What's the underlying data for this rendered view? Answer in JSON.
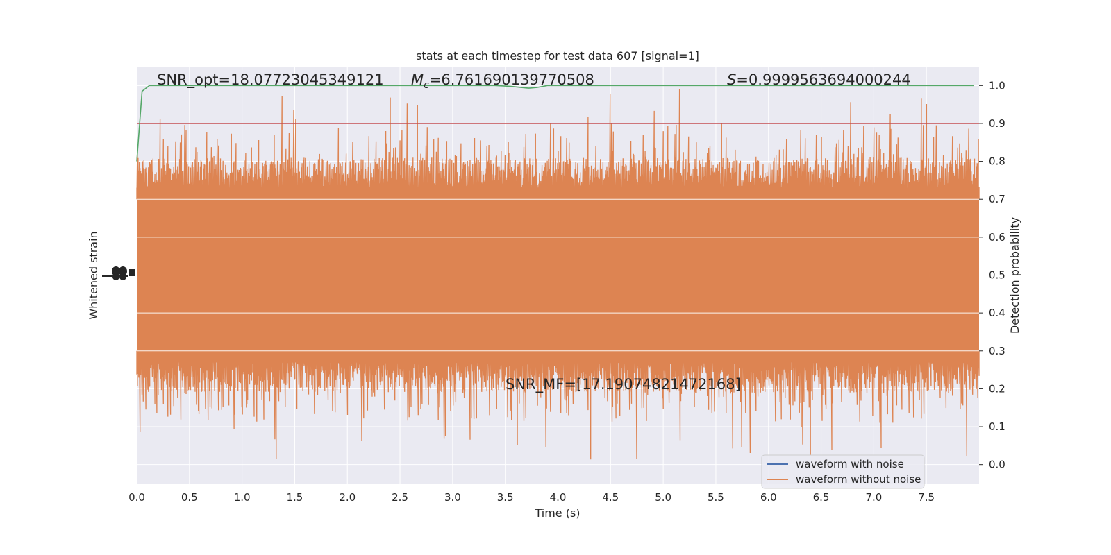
{
  "chart_data": {
    "type": "line",
    "title": "stats at each timestep for test data 607 [signal=1]",
    "xlabel": "Time (s)",
    "ylabel_left": "Whitened strain",
    "ylabel_right": "Detection probability",
    "xlim": [
      0.0,
      8.0
    ],
    "ylim_right": [
      -0.05,
      1.05
    ],
    "x_ticks": [
      "0.0",
      "0.5",
      "1.0",
      "1.5",
      "2.0",
      "2.5",
      "3.0",
      "3.5",
      "4.0",
      "4.5",
      "5.0",
      "5.5",
      "6.0",
      "6.5",
      "7.0",
      "7.5"
    ],
    "x_tick_values": [
      0.0,
      0.5,
      1.0,
      1.5,
      2.0,
      2.5,
      3.0,
      3.5,
      4.0,
      4.5,
      5.0,
      5.5,
      6.0,
      6.5,
      7.0,
      7.5
    ],
    "right_ticks": [
      "0.0",
      "0.1",
      "0.2",
      "0.3",
      "0.4",
      "0.5",
      "0.6",
      "0.7",
      "0.8",
      "0.9",
      "1.0"
    ],
    "right_tick_values": [
      0.0,
      0.1,
      0.2,
      0.3,
      0.4,
      0.5,
      0.6,
      0.7,
      0.8,
      0.9,
      1.0
    ],
    "grid": true,
    "legend_position": "bottom-right",
    "annotations": {
      "snr_opt": "SNR_opt=18.07723045349121",
      "mc_symbol": "M",
      "mc_subscript": "c",
      "mc_value": "=6.761690139770508",
      "s_symbol": "S",
      "s_value": "=0.9999563694000244",
      "snr_mf": "SNR_MF=[17.19074821472168]"
    },
    "series": [
      {
        "name": "waveform with noise",
        "color": "#4c72b0",
        "kind": "strain"
      },
      {
        "name": "waveform without noise",
        "color": "#dd8452",
        "kind": "strain",
        "band_low": 0.28,
        "band_high": 0.72,
        "spike_min": 0.0,
        "spike_max": 1.0
      },
      {
        "name": "",
        "color": "#55a868",
        "kind": "probability",
        "x": [
          0.0,
          0.05,
          0.12,
          0.2,
          3.4,
          3.55,
          3.65,
          3.72,
          3.8,
          3.9,
          4.0,
          7.95
        ],
        "values": [
          0.8,
          0.985,
          1.0,
          1.0,
          1.0,
          0.998,
          0.995,
          0.993,
          0.995,
          1.0,
          1.0,
          1.0
        ]
      },
      {
        "name": "",
        "color": "#c44e52",
        "kind": "threshold",
        "values": [
          0.9
        ]
      }
    ]
  },
  "colors": {
    "plot_bg": "#eaeaf2",
    "grid": "#ffffff",
    "text": "#262626"
  }
}
